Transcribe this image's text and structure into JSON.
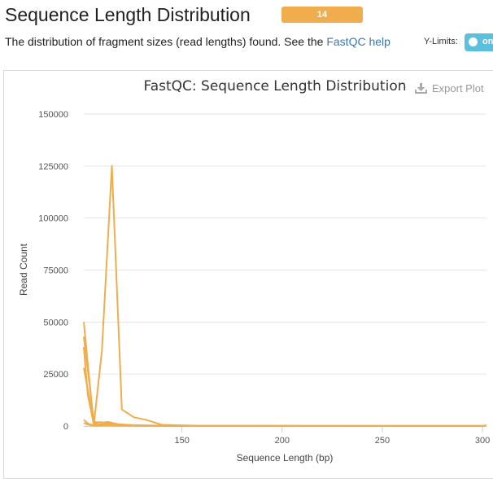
{
  "header": {
    "title": "Sequence Length Distribution",
    "badge_text": "14",
    "badge_color": "#f0ad4e",
    "description_text": "The distribution of fragment sizes (read lengths) found. See the",
    "description_link": "FastQC help",
    "ylimits_label": "Y-Limits:",
    "toggle_text": "on",
    "toggle_color": "#5bc0de"
  },
  "toolbar": {
    "export_label": "Export Plot",
    "export_icon": "download-icon"
  },
  "chart_data": {
    "type": "line",
    "title": "FastQC: Sequence Length Distribution",
    "xlabel": "Sequence Length (bp)",
    "ylabel": "Read Count",
    "xlim": [
      101,
      302
    ],
    "ylim": [
      0,
      150000
    ],
    "xticks": [
      150,
      200,
      250,
      300
    ],
    "yticks": [
      0,
      25000,
      50000,
      75000,
      100000,
      125000,
      150000
    ],
    "grid": true,
    "line_color": "#f0ad4e",
    "series": [
      {
        "x": [
          101,
          103,
          106,
          110,
          115,
          120,
          126,
          132,
          140,
          160,
          200,
          250,
          300,
          302
        ],
        "values": [
          50000,
          30000,
          500,
          36000,
          125000,
          8000,
          4200,
          3000,
          600,
          150,
          100,
          80,
          60,
          400
        ]
      },
      {
        "x": [
          101,
          103,
          106,
          110,
          113,
          118,
          125,
          135,
          150,
          200,
          300
        ],
        "values": [
          43000,
          27000,
          2000,
          1600,
          2000,
          900,
          500,
          300,
          150,
          80,
          50
        ]
      },
      {
        "x": [
          101,
          103,
          106,
          109,
          112,
          116,
          122,
          130,
          145,
          200,
          300
        ],
        "values": [
          38000,
          15000,
          800,
          1900,
          1500,
          1100,
          600,
          250,
          100,
          60,
          40
        ]
      },
      {
        "x": [
          101,
          104,
          106,
          110,
          115,
          120,
          130,
          150,
          200,
          300
        ],
        "values": [
          28000,
          12000,
          500,
          900,
          700,
          400,
          200,
          80,
          40,
          20
        ]
      },
      {
        "x": [
          101,
          103,
          106,
          110,
          115,
          125,
          140,
          200,
          300
        ],
        "values": [
          3000,
          1200,
          300,
          600,
          400,
          200,
          100,
          30,
          10
        ]
      },
      {
        "x": [
          101,
          103,
          106,
          112,
          120,
          140,
          200,
          300
        ],
        "values": [
          1500,
          800,
          200,
          400,
          250,
          120,
          30,
          10
        ]
      }
    ]
  }
}
